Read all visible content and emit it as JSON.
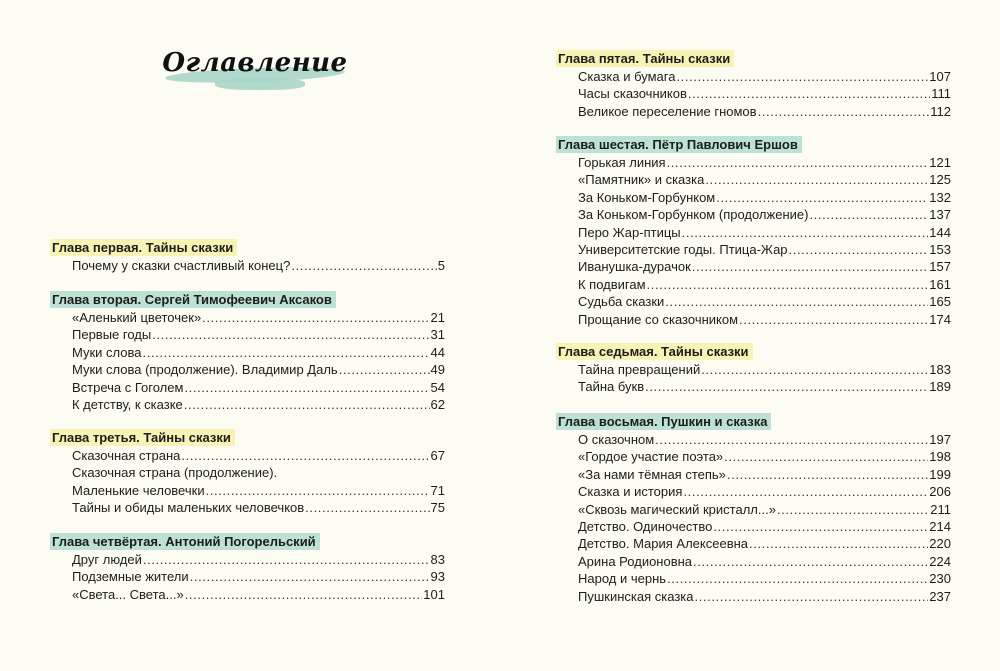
{
  "title": "Оглавление",
  "colors": {
    "background": "#fdfcf2",
    "highlight_yellow": "#f8f3b5",
    "highlight_teal": "#bde2d5",
    "title_brush": "#a9d6c9"
  },
  "left_page": {
    "sections": [
      {
        "heading": "Глава первая. Тайны сказки",
        "highlight": "yellow",
        "entries": [
          {
            "title": "Почему у сказки счастливый конец?",
            "page": "5"
          }
        ]
      },
      {
        "heading": "Глава вторая. Сергей Тимофеевич Аксаков",
        "highlight": "teal",
        "entries": [
          {
            "title": "«Аленький цветочек»",
            "page": "21"
          },
          {
            "title": "Первые годы",
            "page": "31"
          },
          {
            "title": "Муки слова",
            "page": "44"
          },
          {
            "title": "Муки слова (продолжение). Владимир Даль",
            "page": "49"
          },
          {
            "title": "Встреча с Гоголем",
            "page": "54"
          },
          {
            "title": "К детству, к сказке",
            "page": "62"
          }
        ]
      },
      {
        "heading": "Глава третья. Тайны сказки",
        "highlight": "yellow",
        "entries": [
          {
            "title": "Сказочная страна",
            "page": "67"
          },
          {
            "title": "Сказочная страна (продолжение).",
            "page": ""
          },
          {
            "title": "Маленькие человечки",
            "page": "71"
          },
          {
            "title": "Тайны и обиды маленьких человечков",
            "page": "75"
          }
        ]
      },
      {
        "heading": "Глава четвёртая. Антоний Погорельский",
        "highlight": "teal",
        "entries": [
          {
            "title": "Друг людей",
            "page": "83"
          },
          {
            "title": "Подземные жители",
            "page": "93"
          },
          {
            "title": "«Света... Света...»",
            "page": "101"
          }
        ]
      }
    ]
  },
  "right_page": {
    "sections": [
      {
        "heading": "Глава пятая. Тайны сказки",
        "highlight": "yellow",
        "entries": [
          {
            "title": "Сказка и бумага",
            "page": "107"
          },
          {
            "title": "Часы сказочников",
            "page": "111"
          },
          {
            "title": "Великое переселение гномов",
            "page": "112"
          }
        ]
      },
      {
        "heading": "Глава шестая. Пётр Павлович Ершов",
        "highlight": "teal",
        "entries": [
          {
            "title": "Горькая линия",
            "page": "121"
          },
          {
            "title": "«Памятник» и сказка",
            "page": "125"
          },
          {
            "title": "За Коньком-Горбунком",
            "page": "132"
          },
          {
            "title": "За Коньком-Горбунком (продолжение)",
            "page": "137"
          },
          {
            "title": "Перо Жар-птицы",
            "page": "144"
          },
          {
            "title": "Университетские годы. Птица-Жар",
            "page": "153"
          },
          {
            "title": "Иванушка-дурачок",
            "page": "157"
          },
          {
            "title": "К подвигам",
            "page": "161"
          },
          {
            "title": "Судьба сказки",
            "page": "165"
          },
          {
            "title": "Прощание со сказочником",
            "page": "174"
          }
        ]
      },
      {
        "heading": "Глава седьмая. Тайны сказки",
        "highlight": "yellow",
        "entries": [
          {
            "title": "Тайна превращений",
            "page": "183"
          },
          {
            "title": "Тайна букв",
            "page": "189"
          }
        ]
      },
      {
        "heading": "Глава восьмая. Пушкин и сказка",
        "highlight": "teal",
        "entries": [
          {
            "title": "О сказочном",
            "page": "197"
          },
          {
            "title": "«Гордое участие поэта»",
            "page": "198"
          },
          {
            "title": "«За нами тёмная степь»",
            "page": "199"
          },
          {
            "title": "Сказка и история",
            "page": "206"
          },
          {
            "title": "«Сквозь магический кристалл...»",
            "page": "211"
          },
          {
            "title": "Детство. Одиночество",
            "page": "214"
          },
          {
            "title": "Детство. Мария Алексеевна",
            "page": "220"
          },
          {
            "title": "Арина Родионовна",
            "page": "224"
          },
          {
            "title": "Народ и чернь",
            "page": "230"
          },
          {
            "title": "Пушкинская сказка",
            "page": "237"
          }
        ]
      }
    ]
  }
}
